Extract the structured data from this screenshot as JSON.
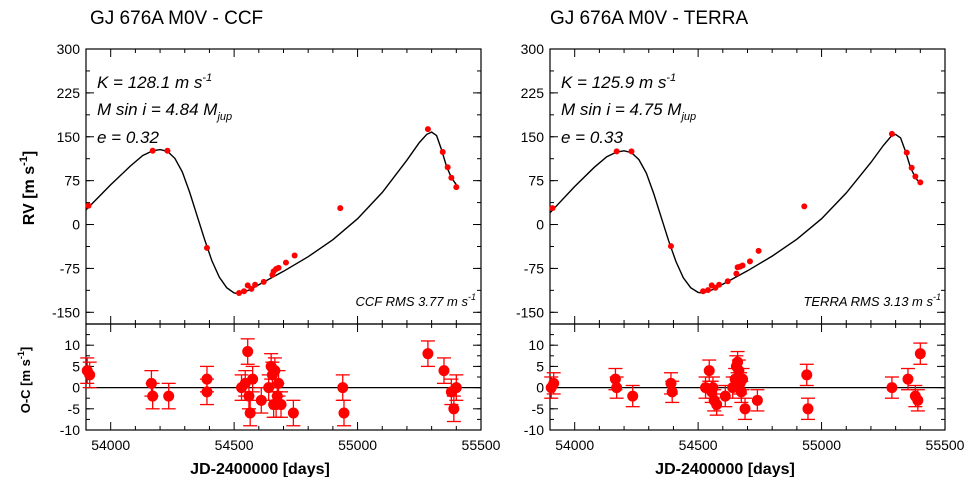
{
  "figure": {
    "xlabel": "JD-2400000 [days]",
    "rv_ylabel": "RV [m s",
    "rv_ylabel_sup": "-1",
    "rv_ylabel_end": "]",
    "oc_ylabel": "O-C [m s",
    "oc_ylabel_sup": "-1",
    "oc_ylabel_end": "]"
  },
  "panels": [
    {
      "title": "GJ 676A M0V - CCF",
      "K_text": "K = 128.1 m s",
      "K_sup": "-1",
      "M_text": "M sin i = 4.84 M",
      "M_sub": "jup",
      "e_text": "e = 0.32",
      "rms_text": "CCF RMS 3.77 m s",
      "rms_sup": "-1"
    },
    {
      "title": "GJ 676A M0V - TERRA",
      "K_text": "K = 125.9 m s",
      "K_sup": "-1",
      "M_text": "M sin i = 4.75 M",
      "M_sub": "jup",
      "e_text": "e = 0.33",
      "rms_text": "TERRA RMS 3.13 m s",
      "rms_sup": "-1"
    }
  ],
  "chart_data": [
    {
      "type": "scatter",
      "panel": "CCF radial velocity",
      "title": "GJ 676A M0V - CCF",
      "xlabel": "JD-2400000 [days]",
      "ylabel": "RV [m s-1]",
      "xlim": [
        53900,
        55500
      ],
      "ylim": [
        -170,
        300
      ],
      "xticks": [
        54000,
        54500,
        55000,
        55500
      ],
      "yticks": [
        -150,
        -75,
        0,
        75,
        150,
        225,
        300
      ],
      "model_curve": [
        [
          53900,
          25
        ],
        [
          54000,
          68
        ],
        [
          54080,
          100
        ],
        [
          54130,
          118
        ],
        [
          54170,
          126
        ],
        [
          54200,
          128
        ],
        [
          54230,
          125
        ],
        [
          54260,
          113
        ],
        [
          54290,
          90
        ],
        [
          54320,
          55
        ],
        [
          54350,
          15
        ],
        [
          54380,
          -25
        ],
        [
          54410,
          -62
        ],
        [
          54440,
          -90
        ],
        [
          54470,
          -108
        ],
        [
          54500,
          -117
        ],
        [
          54520,
          -118
        ],
        [
          54560,
          -112
        ],
        [
          54600,
          -103
        ],
        [
          54700,
          -80
        ],
        [
          54800,
          -55
        ],
        [
          54900,
          -26
        ],
        [
          55000,
          10
        ],
        [
          55100,
          55
        ],
        [
          55200,
          110
        ],
        [
          55250,
          140
        ],
        [
          55280,
          154
        ],
        [
          55300,
          158
        ],
        [
          55320,
          152
        ],
        [
          55340,
          128
        ],
        [
          55360,
          100
        ],
        [
          55380,
          80
        ],
        [
          55400,
          68
        ]
      ],
      "points": [
        [
          53910,
          32
        ],
        [
          54170,
          126
        ],
        [
          54230,
          126
        ],
        [
          54390,
          -40
        ],
        [
          54520,
          -117
        ],
        [
          54540,
          -114
        ],
        [
          54555,
          -104
        ],
        [
          54570,
          -110
        ],
        [
          54585,
          -103
        ],
        [
          54620,
          -98
        ],
        [
          54655,
          -86
        ],
        [
          54660,
          -80
        ],
        [
          54670,
          -76
        ],
        [
          54680,
          -74
        ],
        [
          54710,
          -65
        ],
        [
          54745,
          -53
        ],
        [
          54930,
          28
        ],
        [
          55285,
          163
        ],
        [
          55345,
          124
        ],
        [
          55365,
          98
        ],
        [
          55380,
          80
        ],
        [
          55400,
          64
        ]
      ]
    },
    {
      "type": "scatter",
      "panel": "CCF residuals",
      "xlabel": "JD-2400000 [days]",
      "ylabel": "O-C [m s-1]",
      "xlim": [
        53900,
        55500
      ],
      "ylim": [
        -10,
        15
      ],
      "xticks": [
        54000,
        54500,
        55000,
        55500
      ],
      "yticks": [
        -10,
        -5,
        0,
        5,
        10
      ],
      "zero_line": 0,
      "error_bar": 3,
      "points": [
        [
          53905,
          4
        ],
        [
          53915,
          3
        ],
        [
          54165,
          1
        ],
        [
          54170,
          -2
        ],
        [
          54235,
          -2
        ],
        [
          54390,
          2
        ],
        [
          54390,
          -1
        ],
        [
          54530,
          0
        ],
        [
          54545,
          1
        ],
        [
          54555,
          8.5
        ],
        [
          54560,
          -2
        ],
        [
          54565,
          -6
        ],
        [
          54575,
          2
        ],
        [
          54610,
          -3
        ],
        [
          54640,
          0
        ],
        [
          54650,
          5
        ],
        [
          54655,
          3
        ],
        [
          54660,
          -4
        ],
        [
          54665,
          4
        ],
        [
          54670,
          -4
        ],
        [
          54675,
          -2
        ],
        [
          54680,
          1
        ],
        [
          54690,
          -4
        ],
        [
          54740,
          -6
        ],
        [
          54940,
          0
        ],
        [
          54945,
          -6
        ],
        [
          55285,
          8
        ],
        [
          55350,
          4
        ],
        [
          55380,
          -1
        ],
        [
          55390,
          -5
        ],
        [
          55400,
          0
        ]
      ]
    },
    {
      "type": "scatter",
      "panel": "TERRA radial velocity",
      "title": "GJ 676A M0V - TERRA",
      "xlabel": "JD-2400000 [days]",
      "ylabel": "RV [m s-1]",
      "xlim": [
        53900,
        55500
      ],
      "ylim": [
        -170,
        300
      ],
      "xticks": [
        54000,
        54500,
        55000,
        55500
      ],
      "yticks": [
        -150,
        -75,
        0,
        75,
        150,
        225,
        300
      ],
      "model_curve": [
        [
          53900,
          20
        ],
        [
          54000,
          65
        ],
        [
          54080,
          98
        ],
        [
          54130,
          116
        ],
        [
          54170,
          124
        ],
        [
          54200,
          126
        ],
        [
          54230,
          123
        ],
        [
          54260,
          111
        ],
        [
          54290,
          88
        ],
        [
          54320,
          53
        ],
        [
          54350,
          13
        ],
        [
          54380,
          -27
        ],
        [
          54410,
          -63
        ],
        [
          54440,
          -91
        ],
        [
          54470,
          -108
        ],
        [
          54500,
          -116
        ],
        [
          54520,
          -117
        ],
        [
          54560,
          -111
        ],
        [
          54600,
          -102
        ],
        [
          54700,
          -79
        ],
        [
          54800,
          -54
        ],
        [
          54900,
          -25
        ],
        [
          55000,
          10
        ],
        [
          55100,
          54
        ],
        [
          55200,
          106
        ],
        [
          55250,
          135
        ],
        [
          55280,
          150
        ],
        [
          55300,
          154
        ],
        [
          55320,
          148
        ],
        [
          55340,
          125
        ],
        [
          55360,
          98
        ],
        [
          55380,
          80
        ],
        [
          55400,
          70
        ]
      ],
      "points": [
        [
          53910,
          28
        ],
        [
          54170,
          125
        ],
        [
          54230,
          125
        ],
        [
          54390,
          -37
        ],
        [
          54520,
          -114
        ],
        [
          54540,
          -112
        ],
        [
          54555,
          -104
        ],
        [
          54570,
          -108
        ],
        [
          54585,
          -103
        ],
        [
          54620,
          -97
        ],
        [
          54655,
          -84
        ],
        [
          54660,
          -73
        ],
        [
          54670,
          -72
        ],
        [
          54680,
          -70
        ],
        [
          54710,
          -63
        ],
        [
          54745,
          -45
        ],
        [
          54930,
          31
        ],
        [
          55285,
          155
        ],
        [
          55345,
          123
        ],
        [
          55365,
          97
        ],
        [
          55380,
          82
        ],
        [
          55400,
          72
        ]
      ]
    },
    {
      "type": "scatter",
      "panel": "TERRA residuals",
      "xlabel": "JD-2400000 [days]",
      "ylabel": "O-C [m s-1]",
      "xlim": [
        53900,
        55500
      ],
      "ylim": [
        -10,
        15
      ],
      "xticks": [
        54000,
        54500,
        55000,
        55500
      ],
      "yticks": [
        -10,
        -5,
        0,
        5,
        10
      ],
      "zero_line": 0,
      "error_bar": 2.5,
      "points": [
        [
          53905,
          0
        ],
        [
          53915,
          1
        ],
        [
          54165,
          2
        ],
        [
          54170,
          0
        ],
        [
          54235,
          -2
        ],
        [
          54390,
          1
        ],
        [
          54395,
          -1
        ],
        [
          54530,
          0
        ],
        [
          54545,
          4
        ],
        [
          54555,
          -1
        ],
        [
          54560,
          0
        ],
        [
          54565,
          -3
        ],
        [
          54575,
          -4
        ],
        [
          54610,
          -2
        ],
        [
          54640,
          0
        ],
        [
          54650,
          2
        ],
        [
          54655,
          5
        ],
        [
          54660,
          6
        ],
        [
          54665,
          4
        ],
        [
          54670,
          1
        ],
        [
          54675,
          -1
        ],
        [
          54680,
          2
        ],
        [
          54690,
          -5
        ],
        [
          54740,
          -3
        ],
        [
          54940,
          3
        ],
        [
          54945,
          -5
        ],
        [
          55285,
          0
        ],
        [
          55350,
          2
        ],
        [
          55380,
          -2
        ],
        [
          55390,
          -3
        ],
        [
          55400,
          8
        ]
      ]
    }
  ]
}
